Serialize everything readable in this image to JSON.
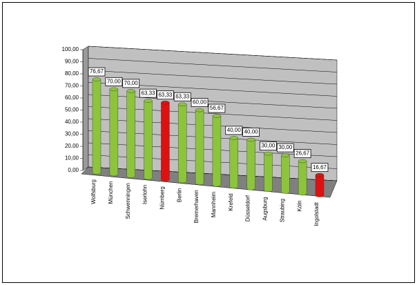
{
  "chart_data": {
    "type": "bar3d",
    "categories": [
      "Wolfsburg",
      "München",
      "Schwenningen",
      "Iserlohn",
      "Nürnberg",
      "Berlin",
      "Bremerhaven",
      "Mannheim",
      "Krefeld",
      "Düsseldorf",
      "Augsburg",
      "Straubing",
      "Köln",
      "Ingolstadt"
    ],
    "values": [
      76.67,
      70,
      70,
      63.33,
      63.33,
      63.33,
      60,
      56.67,
      40,
      40,
      30,
      30,
      26.67,
      16.67
    ],
    "value_labels": [
      "76,67",
      "70,00",
      "70,00",
      "63,33",
      "63,33",
      "63,33",
      "60,00",
      "56,67",
      "40,00",
      "40,00",
      "30,00",
      "30,00",
      "26,67",
      "16,67"
    ],
    "colors": [
      "#8cc43c",
      "#8cc43c",
      "#8cc43c",
      "#8cc43c",
      "#e01010",
      "#8cc43c",
      "#8cc43c",
      "#8cc43c",
      "#8cc43c",
      "#8cc43c",
      "#8cc43c",
      "#8cc43c",
      "#8cc43c",
      "#e01010"
    ],
    "ylim": [
      0,
      100
    ],
    "yticks": [
      {
        "value": 0,
        "label": "0,00"
      },
      {
        "value": 10,
        "label": "10,00"
      },
      {
        "value": 20,
        "label": "20,00"
      },
      {
        "value": 30,
        "label": "30,00"
      },
      {
        "value": 40,
        "label": "40,00"
      },
      {
        "value": 50,
        "label": "50,00"
      },
      {
        "value": 60,
        "label": "60,00"
      },
      {
        "value": 70,
        "label": "70,00"
      },
      {
        "value": 80,
        "label": "80,00"
      },
      {
        "value": 90,
        "label": "90,00"
      },
      {
        "value": 100,
        "label": "100,00"
      }
    ],
    "grid": true
  }
}
